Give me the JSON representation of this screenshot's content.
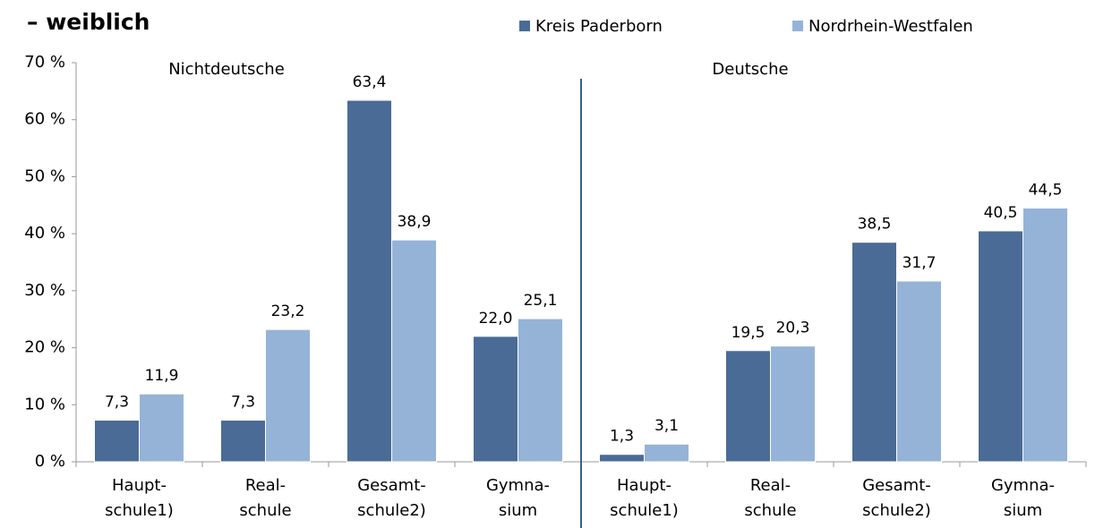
{
  "chart_data": {
    "type": "bar",
    "title": "– weiblich",
    "categories": [
      "Haupt-\nschule1)",
      "Real-\nschule",
      "Gesamt-\nschule2)",
      "Gymna-\nsium",
      "Haupt-\nschule1)",
      "Real-\nschule",
      "Gesamt-\nschule2)",
      "Gymna-\nsium"
    ],
    "group_labels": [
      "Nichtdeutsche",
      "Deutsche"
    ],
    "series": [
      {
        "name": "Kreis Paderborn",
        "color": "#4a6b96",
        "values": [
          7.3,
          7.3,
          63.4,
          22.0,
          1.3,
          19.5,
          38.5,
          40.5
        ],
        "value_labels": [
          "7,3",
          "7,3",
          "63,4",
          "22,0",
          "1,3",
          "19,5",
          "38,5",
          "40,5"
        ]
      },
      {
        "name": "Nordrhein-Westfalen",
        "color": "#95b3d7",
        "values": [
          11.9,
          23.2,
          38.9,
          25.1,
          3.1,
          20.3,
          31.7,
          44.5
        ],
        "value_labels": [
          "11,9",
          "23,2",
          "38,9",
          "25,1",
          "3,1",
          "20,3",
          "31,7",
          "44,5"
        ]
      }
    ],
    "ylim": [
      0,
      70
    ],
    "yticks": [
      {
        "value": 0,
        "label": "0 %"
      },
      {
        "value": 10,
        "label": "10 %"
      },
      {
        "value": 20,
        "label": "20 %"
      },
      {
        "value": 30,
        "label": "30 %"
      },
      {
        "value": 40,
        "label": "40 %"
      },
      {
        "value": 50,
        "label": "50 %"
      },
      {
        "value": 60,
        "label": "60 %"
      },
      {
        "value": 70,
        "label": "70 %"
      }
    ],
    "legend": "top"
  }
}
